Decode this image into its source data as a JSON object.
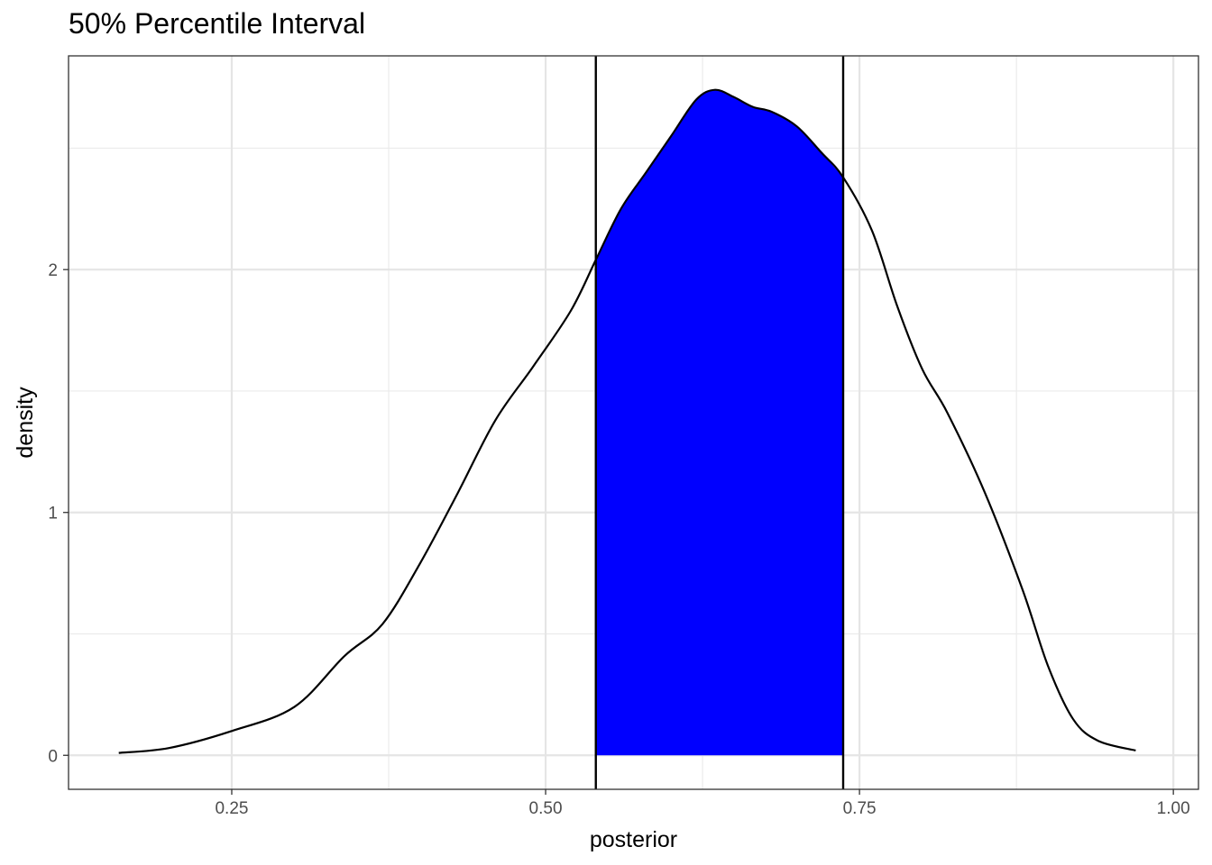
{
  "chart_data": {
    "type": "area",
    "title": "50% Percentile Interval",
    "xlabel": "posterior",
    "ylabel": "density",
    "xlim": [
      0.12,
      1.02
    ],
    "ylim": [
      -0.14,
      2.88
    ],
    "x_ticks": [
      0.25,
      0.5,
      0.75,
      1.0
    ],
    "x_tick_labels": [
      "0.25",
      "0.50",
      "0.75",
      "1.00"
    ],
    "y_ticks": [
      0,
      1,
      2
    ],
    "y_tick_labels": [
      "0",
      "1",
      "2"
    ],
    "grid": true,
    "interval": {
      "lower": 0.54,
      "upper": 0.737,
      "fill_color": "#0000ff"
    },
    "series": [
      {
        "values_x": [
          0.16,
          0.2,
          0.25,
          0.3,
          0.34,
          0.37,
          0.4,
          0.43,
          0.46,
          0.49,
          0.52,
          0.54,
          0.56,
          0.58,
          0.6,
          0.62,
          0.635,
          0.65,
          0.665,
          0.68,
          0.7,
          0.72,
          0.737,
          0.76,
          0.78,
          0.8,
          0.82,
          0.85,
          0.88,
          0.9,
          0.92,
          0.94,
          0.97
        ],
        "values_y": [
          0.01,
          0.03,
          0.1,
          0.2,
          0.41,
          0.54,
          0.79,
          1.08,
          1.38,
          1.6,
          1.83,
          2.04,
          2.25,
          2.4,
          2.55,
          2.7,
          2.74,
          2.71,
          2.67,
          2.65,
          2.59,
          2.48,
          2.38,
          2.16,
          1.85,
          1.59,
          1.41,
          1.08,
          0.68,
          0.37,
          0.15,
          0.06,
          0.02
        ]
      }
    ]
  }
}
